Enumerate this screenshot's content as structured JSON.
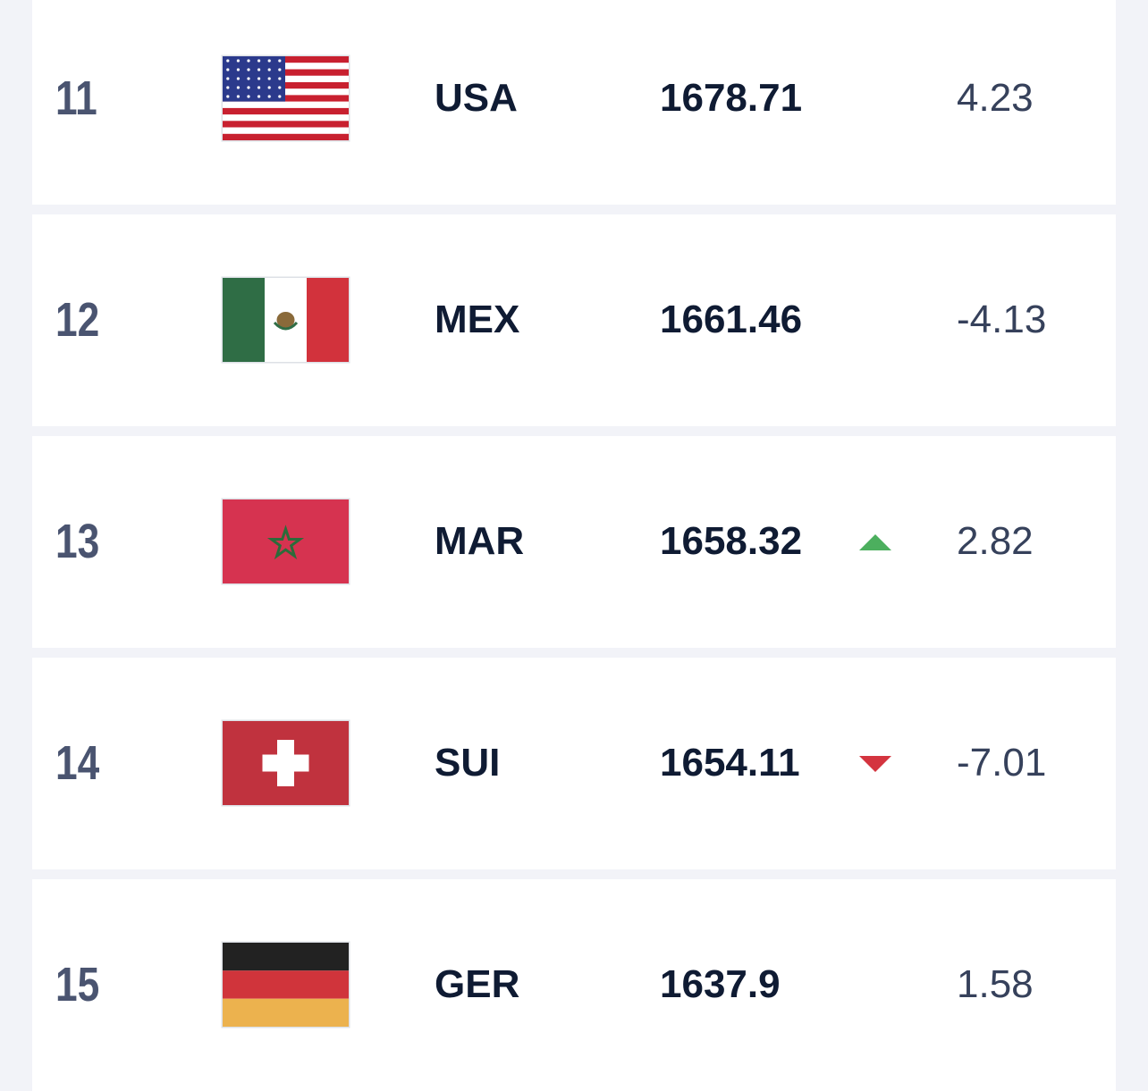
{
  "rows": [
    {
      "rank": 11,
      "team": "USA",
      "points": 1678.71,
      "change": 4.23
    },
    {
      "rank": 12,
      "team": "MEX",
      "points": 1661.46,
      "change": -4.13
    },
    {
      "rank": 13,
      "team": "MAR",
      "points": 1658.32,
      "trend": "up",
      "change": 2.82
    },
    {
      "rank": 14,
      "team": "SUI",
      "points": 1654.11,
      "trend": "down",
      "change": -7.01
    },
    {
      "rank": 15,
      "team": "GER",
      "points": 1637.9,
      "change": 1.58
    }
  ]
}
